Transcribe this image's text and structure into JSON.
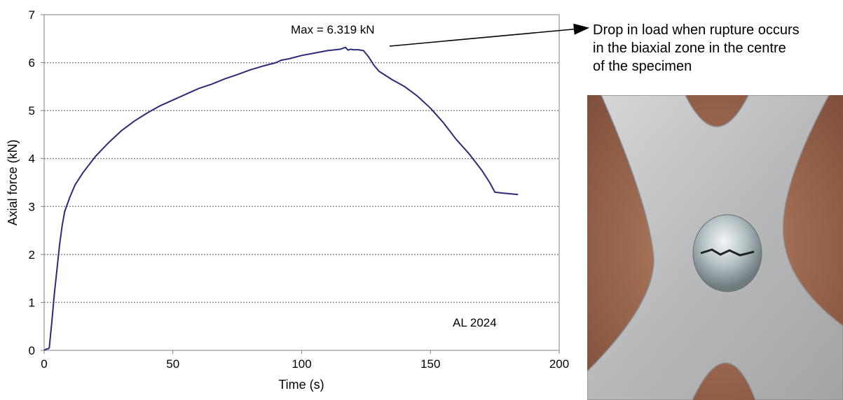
{
  "chart_data": {
    "type": "line",
    "title": "",
    "xlabel": "Time (s)",
    "ylabel": "Axial force (kN)",
    "xlim": [
      0,
      200
    ],
    "ylim": [
      0,
      7
    ],
    "x_ticks": [
      0,
      50,
      100,
      150,
      200
    ],
    "y_ticks": [
      0,
      1,
      2,
      3,
      4,
      5,
      6,
      7
    ],
    "grid": "horizontal dotted",
    "series": [
      {
        "name": "",
        "color": "#2b2b7a",
        "x": [
          0,
          1,
          1.5,
          2,
          3,
          4,
          5,
          6,
          7,
          8,
          10,
          12,
          15,
          20,
          25,
          30,
          35,
          40,
          45,
          50,
          55,
          60,
          65,
          70,
          75,
          80,
          85,
          90,
          92,
          95,
          100,
          105,
          110,
          115,
          117,
          118,
          119,
          120,
          122,
          124,
          126,
          128,
          130,
          135,
          140,
          145,
          150,
          155,
          160,
          165,
          170,
          173,
          175,
          178,
          180,
          182,
          184
        ],
        "y": [
          0,
          0.03,
          0.03,
          0.05,
          0.6,
          1.2,
          1.7,
          2.2,
          2.6,
          2.9,
          3.2,
          3.45,
          3.7,
          4.05,
          4.33,
          4.58,
          4.78,
          4.95,
          5.1,
          5.22,
          5.34,
          5.46,
          5.55,
          5.66,
          5.75,
          5.85,
          5.93,
          6.0,
          6.05,
          6.08,
          6.15,
          6.2,
          6.25,
          6.28,
          6.319,
          6.26,
          6.28,
          6.27,
          6.27,
          6.25,
          6.12,
          5.95,
          5.82,
          5.65,
          5.5,
          5.3,
          5.05,
          4.75,
          4.4,
          4.1,
          3.75,
          3.5,
          3.3,
          3.28,
          3.27,
          3.26,
          3.25
        ]
      }
    ],
    "annotations": {
      "max_label": "Max = 6.319 kN",
      "max_point": {
        "x": 117,
        "y": 6.319
      },
      "material_label": "AL 2024"
    }
  },
  "annotation_text": {
    "line1": "Drop in load when rupture occurs",
    "line2": "in the biaxial zone in the centre",
    "line3": "of the specimen"
  },
  "colors": {
    "line": "#2b2b7a",
    "grid": "#8c8c8c",
    "axis": "#808080",
    "photo_background": "#9a6a50",
    "specimen_metal": "#bfc0c2"
  }
}
